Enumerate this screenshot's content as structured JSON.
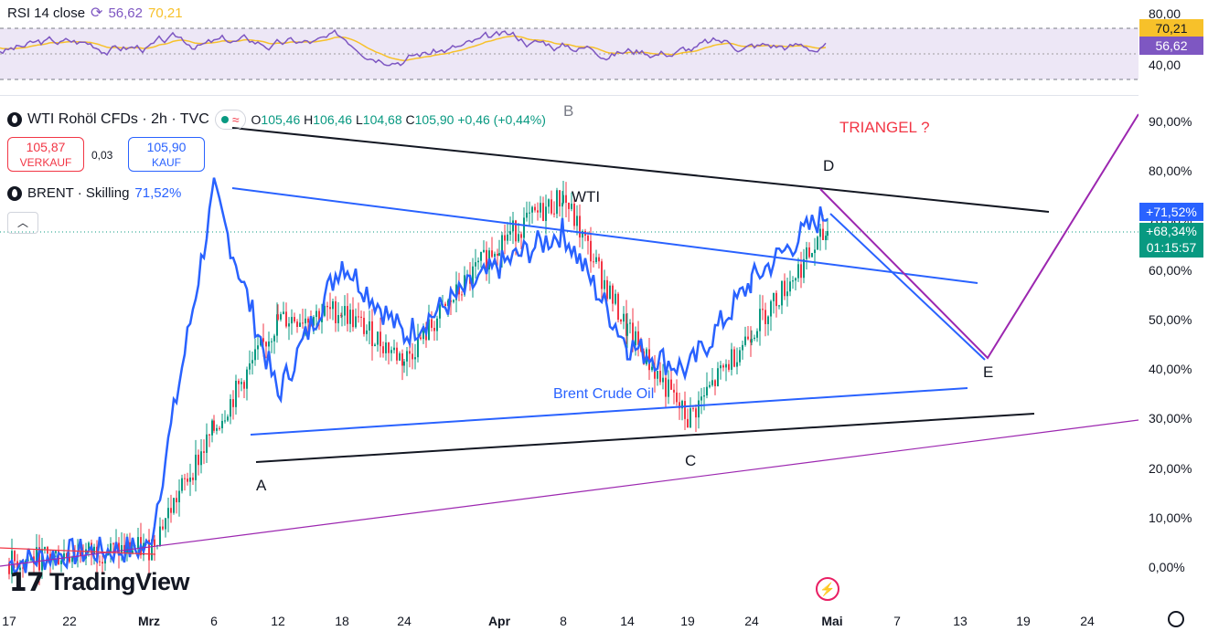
{
  "rsi": {
    "label": "RSI 14 close",
    "value_rsi": "56,62",
    "value_ma": "70,21",
    "colors": {
      "rsi": "#7e57c2",
      "ma": "#f7c12a",
      "band": "#ede7f6"
    },
    "ticks": [
      "80,00",
      "40,00"
    ],
    "tags": [
      "70,21",
      "56,62"
    ]
  },
  "symbol": {
    "name": "WTI Rohöl CFDs · 2h · TVC",
    "ohlc": [
      {
        "k": "O",
        "v": "105,46"
      },
      {
        "k": "H",
        "v": "106,46"
      },
      {
        "k": "L",
        "v": "104,68"
      },
      {
        "k": "C",
        "v": "105,90"
      },
      {
        "k": "",
        "v": "+0,46 (+0,44%)"
      }
    ]
  },
  "trade": {
    "sell_price": "105,87",
    "sell_label": "VERKAUF",
    "spread": "0,03",
    "buy_price": "105,90",
    "buy_label": "KAUF"
  },
  "compare": {
    "name": "BRENT · Skilling",
    "value": "71,52%"
  },
  "price_tags": {
    "brent": "+71,52%",
    "wti": "+68,34%",
    "countdown": "01:15:57"
  },
  "annotations": {
    "A": "A",
    "B": "B",
    "C": "C",
    "D": "D",
    "E": "E",
    "triangle": "TRIANGEL ?",
    "wti": "WTI",
    "brent": "Brent Crude Oil"
  },
  "logo": "TradingView",
  "chart_data": {
    "type": "line",
    "y_unit": "%",
    "y_ticks": [
      "90,00%",
      "80,00%",
      "70,00%",
      "60,00%",
      "50,00%",
      "40,00%",
      "30,00%",
      "20,00%",
      "10,00%",
      "0,00%"
    ],
    "ylim": [
      0,
      90
    ],
    "x_ticks": [
      "17",
      "22",
      "Mrz",
      "6",
      "12",
      "18",
      "24",
      "Apr",
      "8",
      "14",
      "19",
      "24",
      "Mai",
      "7",
      "13",
      "19",
      "24"
    ],
    "series": [
      {
        "name": "WTI",
        "color": "#089981",
        "x": [
          "17",
          "22",
          "Mrz",
          "6",
          "12",
          "18",
          "24",
          "Apr",
          "8",
          "14",
          "19",
          "24",
          "Mai"
        ],
        "values": [
          1,
          3,
          4,
          28,
          50,
          52,
          42,
          66,
          75,
          48,
          30,
          48,
          68
        ]
      },
      {
        "name": "BRENT",
        "color": "#2962ff",
        "x": [
          "17",
          "22",
          "Mrz",
          "6",
          "12",
          "18",
          "24",
          "Apr",
          "8",
          "14",
          "19",
          "24",
          "Mai"
        ],
        "values": [
          1,
          3,
          4,
          76,
          35,
          62,
          47,
          61,
          68,
          45,
          40,
          58,
          72
        ]
      }
    ],
    "last_values": {
      "BRENT": 71.52,
      "WTI": 68.34
    }
  }
}
